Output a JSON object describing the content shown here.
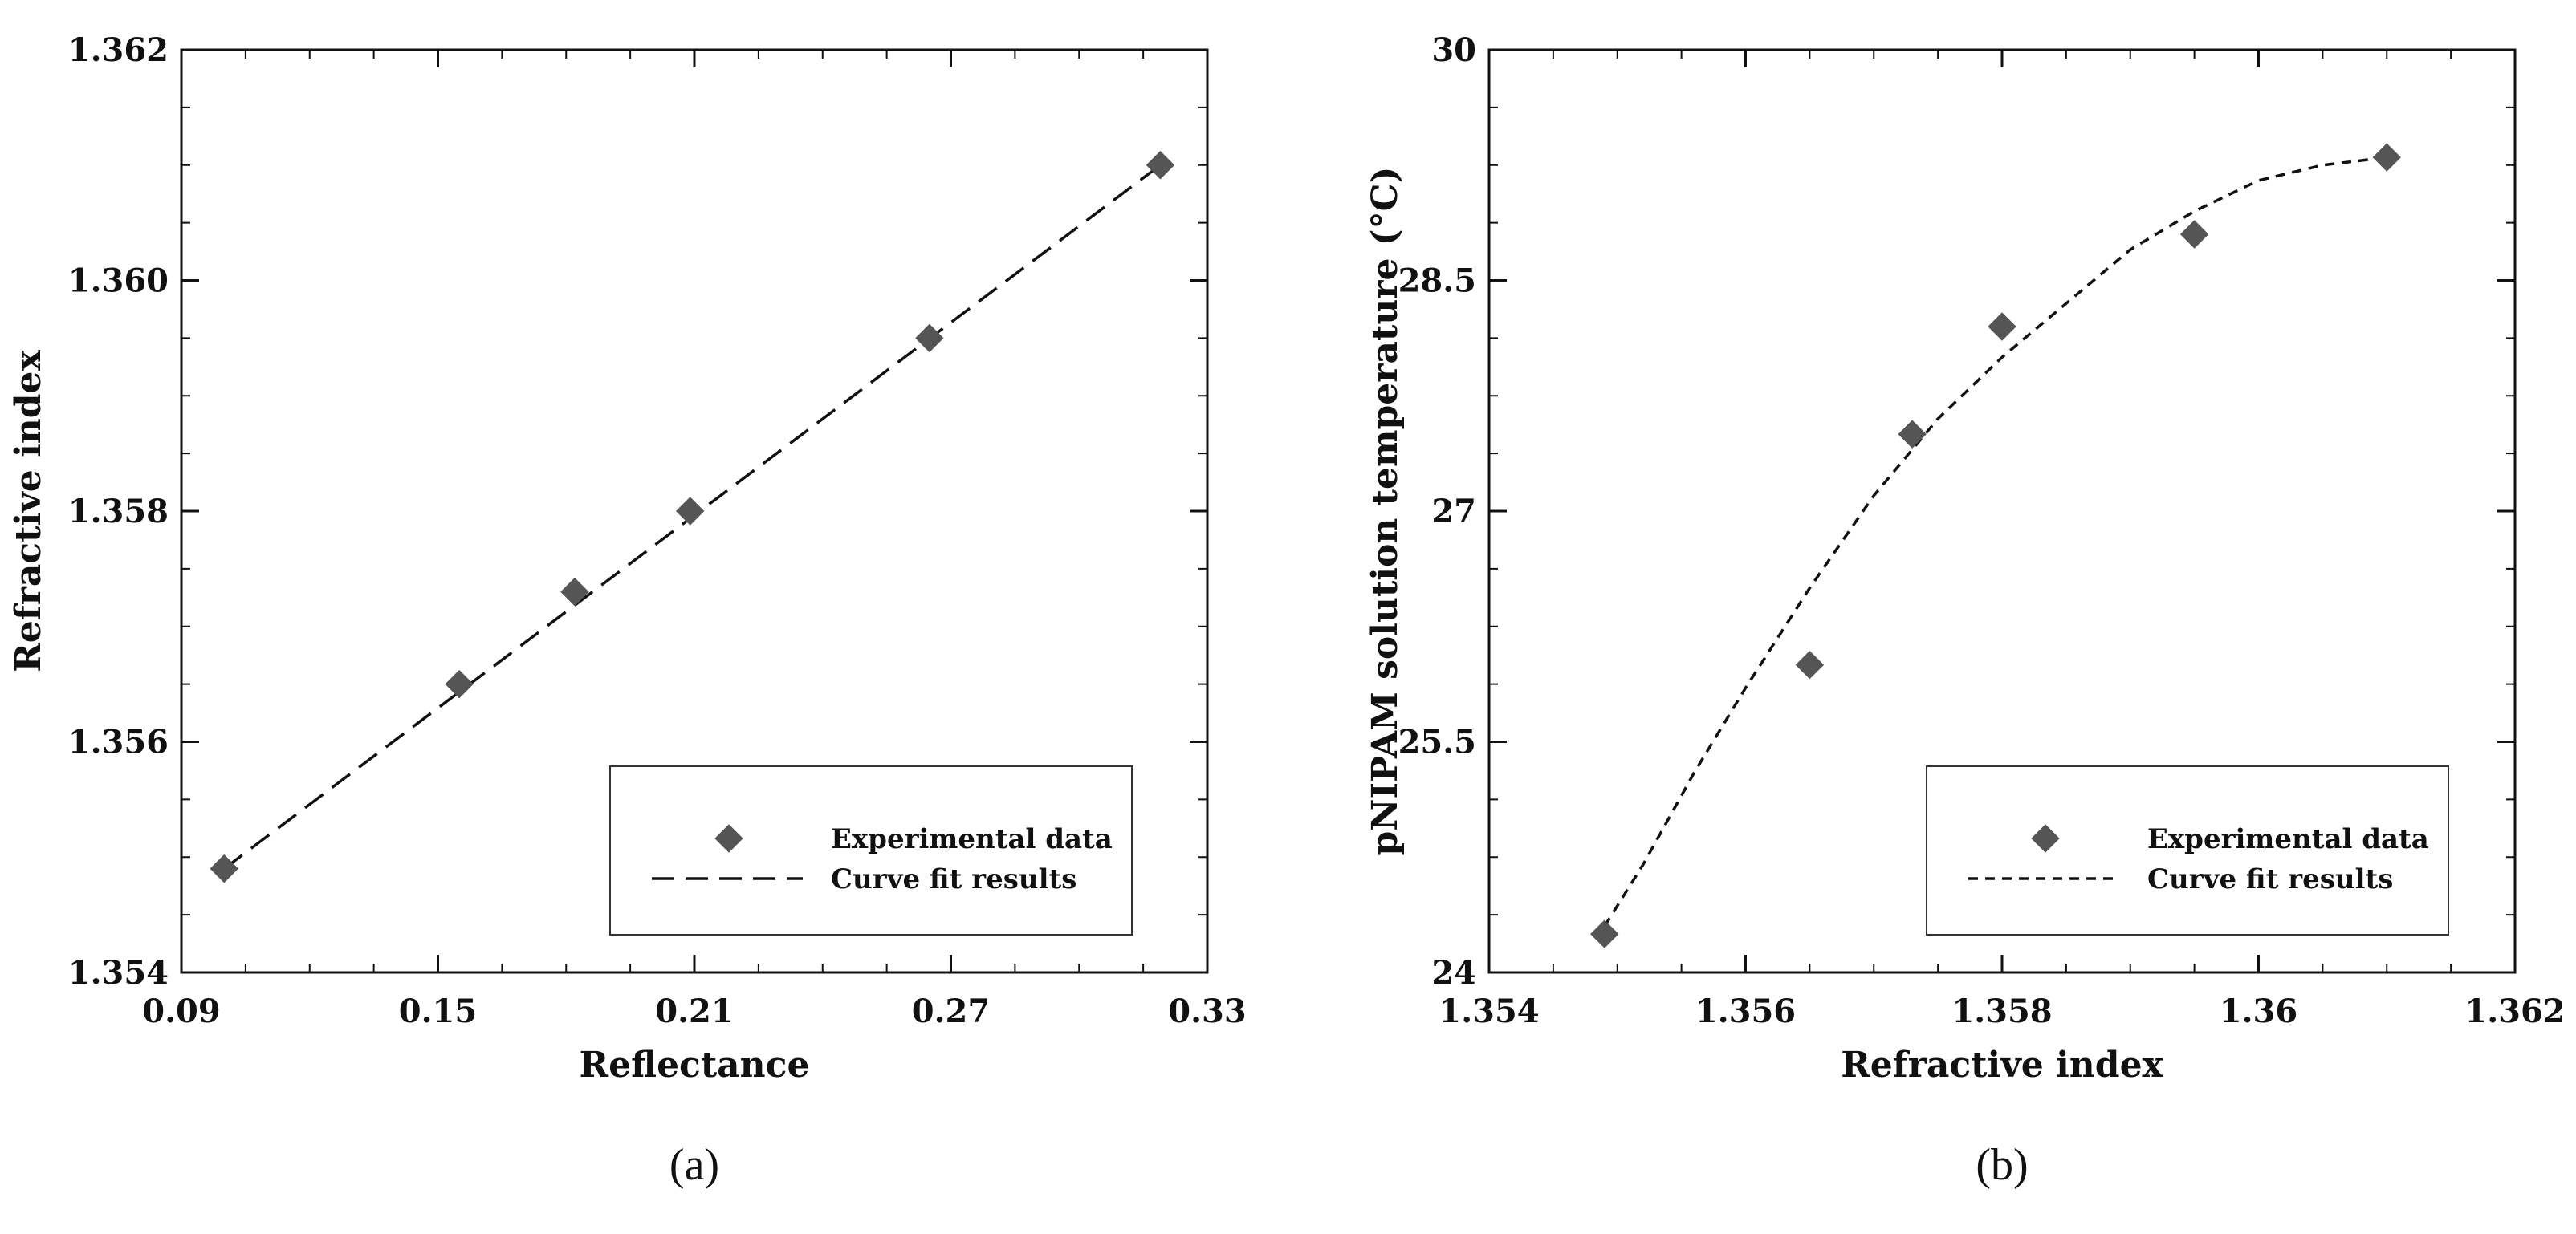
{
  "chart_data": [
    {
      "type": "scatter",
      "panel_label": "(a)",
      "xlabel": "Reflectance",
      "ylabel": "Refractive index",
      "xlim": [
        0.09,
        0.33
      ],
      "ylim": [
        1.354,
        1.362
      ],
      "x_ticks": [
        "0.09",
        "0.15",
        "0.21",
        "0.27",
        "0.33"
      ],
      "y_ticks": [
        "1.354",
        "1.356",
        "1.358",
        "1.360",
        "1.362"
      ],
      "legend_position": "bottom-right",
      "series": [
        {
          "name": "Experimental data",
          "kind": "markers",
          "marker": "diamond",
          "color": "#555555",
          "x": [
            0.1,
            0.155,
            0.182,
            0.209,
            0.265,
            0.319
          ],
          "y": [
            1.3549,
            1.3565,
            1.3573,
            1.358,
            1.3595,
            1.361
          ]
        },
        {
          "name": "Curve fit results",
          "kind": "line",
          "dash": "long",
          "color": "#111111",
          "x": [
            0.1,
            0.319
          ],
          "y": [
            1.3549,
            1.361
          ]
        }
      ]
    },
    {
      "type": "scatter",
      "panel_label": "(b)",
      "xlabel": "Refractive index",
      "ylabel": "pNIPAM solution temperature (°C)",
      "xlim": [
        1.354,
        1.362
      ],
      "ylim": [
        24,
        30
      ],
      "x_ticks": [
        "1.354",
        "1.356",
        "1.358",
        "1.36",
        "1.362"
      ],
      "y_ticks": [
        "24",
        "25.5",
        "27",
        "28.5",
        "30"
      ],
      "legend_position": "bottom-right",
      "series": [
        {
          "name": "Experimental data",
          "kind": "markers",
          "marker": "diamond",
          "color": "#555555",
          "x": [
            1.3549,
            1.3565,
            1.3573,
            1.358,
            1.3595,
            1.361
          ],
          "y": [
            24.25,
            26.0,
            27.5,
            28.2,
            28.8,
            29.3
          ]
        },
        {
          "name": "Curve fit results",
          "kind": "line",
          "dash": "short",
          "color": "#111111",
          "x": [
            1.3549,
            1.3552,
            1.3556,
            1.356,
            1.3565,
            1.357,
            1.3575,
            1.358,
            1.3585,
            1.359,
            1.3595,
            1.36,
            1.3605,
            1.361
          ],
          "y": [
            24.3,
            24.7,
            25.3,
            25.85,
            26.5,
            27.1,
            27.6,
            28.0,
            28.35,
            28.7,
            28.95,
            29.15,
            29.25,
            29.3
          ]
        }
      ]
    }
  ]
}
